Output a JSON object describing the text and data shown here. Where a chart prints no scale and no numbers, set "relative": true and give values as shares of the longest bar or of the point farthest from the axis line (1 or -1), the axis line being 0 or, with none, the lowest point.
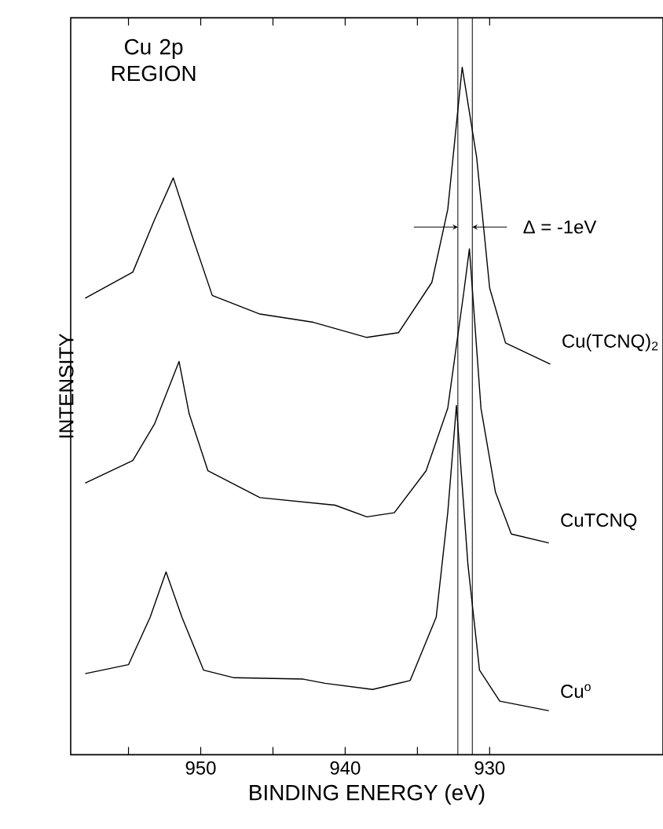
{
  "chart_data": {
    "type": "line",
    "relative": true,
    "xlabel": "BINDING ENERGY (eV)",
    "ylabel": "INTENSITY",
    "xlim": [
      959,
      918
    ],
    "xticks": [
      {
        "value": 955,
        "label": null
      },
      950,
      {
        "value": 945,
        "label": null
      },
      940,
      {
        "value": 935,
        "label": null
      },
      930
    ],
    "tick_labels": "x",
    "grid": false,
    "legend": false,
    "marker": "none",
    "line_style": "solid",
    "annotations": [
      "Cu 2p REGION",
      "Δ = -1eV"
    ],
    "ref_lines": [
      {
        "axis": "x",
        "value": 932.2,
        "color": "#000000"
      },
      {
        "axis": "x",
        "value": 931.2,
        "color": "#000000"
      }
    ],
    "series": [
      {
        "name": "Cu(TCNQ)$_{2}$",
        "color": "#000000",
        "x": [
          958.0,
          954.7,
          953.2,
          951.9,
          950.6,
          949.2,
          945.9,
          942.2,
          938.5,
          936.3,
          934.0,
          932.9,
          931.9,
          930.9,
          930.0,
          928.9,
          925.8
        ],
        "values": [
          0.664,
          0.702,
          0.778,
          0.839,
          0.755,
          0.668,
          0.641,
          0.629,
          0.607,
          0.614,
          0.687,
          0.793,
          1.0,
          0.869,
          0.679,
          0.599,
          0.568
        ]
      },
      {
        "name": "CuTCNQ",
        "color": "#000000",
        "x": [
          958.0,
          954.7,
          953.2,
          951.5,
          950.8,
          949.5,
          945.9,
          940.7,
          938.5,
          936.6,
          934.4,
          932.9,
          931.8,
          931.4,
          930.6,
          929.6,
          928.5,
          925.9
        ],
        "values": [
          0.395,
          0.428,
          0.481,
          0.572,
          0.496,
          0.413,
          0.374,
          0.363,
          0.346,
          0.352,
          0.413,
          0.504,
          0.671,
          0.736,
          0.504,
          0.382,
          0.321,
          0.308
        ]
      },
      {
        "name": "Cu$^{o}$",
        "color": "#000000",
        "x": [
          958.0,
          955.0,
          953.5,
          952.4,
          951.3,
          949.8,
          947.7,
          942.9,
          941.4,
          938.1,
          935.5,
          933.7,
          932.9,
          932.3,
          931.5,
          930.7,
          929.3,
          925.9
        ],
        "values": [
          0.118,
          0.131,
          0.2,
          0.266,
          0.2,
          0.123,
          0.112,
          0.11,
          0.104,
          0.095,
          0.108,
          0.2,
          0.352,
          0.508,
          0.276,
          0.123,
          0.078,
          0.064
        ]
      }
    ]
  }
}
